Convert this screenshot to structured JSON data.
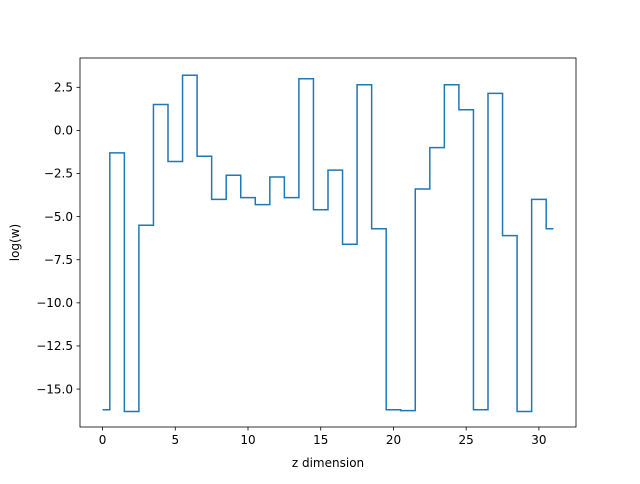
{
  "chart_data": {
    "type": "line",
    "drawstyle": "steps-mid",
    "title": "",
    "xlabel": "z dimension",
    "ylabel": "log(w)",
    "xlim": [
      -1.55,
      32.55
    ],
    "ylim": [
      -17.2,
      4.2
    ],
    "xticks": [
      0,
      5,
      10,
      15,
      20,
      25,
      30
    ],
    "xtick_labels": [
      "0",
      "5",
      "10",
      "15",
      "20",
      "25",
      "30"
    ],
    "yticks": [
      2.5,
      0.0,
      -2.5,
      -5.0,
      -7.5,
      -10.0,
      -12.5,
      -15.0
    ],
    "ytick_labels": [
      "2.5",
      "0.0",
      "−2.5",
      "−5.0",
      "−7.5",
      "−10.0",
      "−12.5",
      "−15.0"
    ],
    "grid": false,
    "legend": "none",
    "x": [
      0,
      1,
      2,
      3,
      4,
      5,
      6,
      7,
      8,
      9,
      10,
      11,
      12,
      13,
      14,
      15,
      16,
      17,
      18,
      19,
      20,
      21,
      22,
      23,
      24,
      25,
      26,
      27,
      28,
      29,
      30,
      31
    ],
    "series": [
      {
        "values": [
          -16.2,
          -1.3,
          -16.3,
          -5.5,
          1.5,
          -1.8,
          3.2,
          -1.5,
          -4.0,
          -2.6,
          -3.9,
          -4.3,
          -2.7,
          -3.9,
          3.0,
          -4.6,
          -2.3,
          -6.6,
          2.65,
          -5.7,
          -16.2,
          -16.25,
          -3.4,
          -1.0,
          2.65,
          1.2,
          -16.2,
          2.15,
          -6.1,
          -16.3,
          -4.0,
          -5.7
        ],
        "color": "#1f77b4"
      }
    ]
  }
}
